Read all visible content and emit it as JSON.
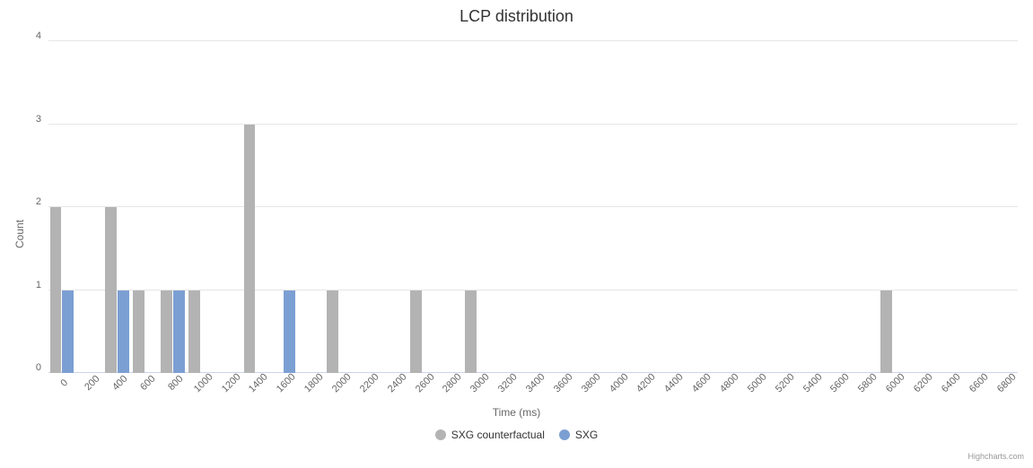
{
  "chart": {
    "type": "bar",
    "title": "LCP distribution",
    "title_fontsize": 18,
    "xlabel": "Time (ms)",
    "ylabel": "Count",
    "label_fontsize": 12,
    "tick_fontsize": 11,
    "background_color": "#ffffff",
    "grid_color": "#e6e6e6",
    "axis_color": "#ccd6eb",
    "text_color": "#333333",
    "tick_text_color": "#666666",
    "ylim": [
      0,
      4
    ],
    "ytick_step": 1,
    "categories": [
      "0",
      "200",
      "400",
      "600",
      "800",
      "1000",
      "1200",
      "1400",
      "1600",
      "1800",
      "2000",
      "2200",
      "2400",
      "2600",
      "2800",
      "3000",
      "3200",
      "3400",
      "3600",
      "3800",
      "4000",
      "4200",
      "4400",
      "4600",
      "4800",
      "5000",
      "5200",
      "5400",
      "5600",
      "5800",
      "6000",
      "6200",
      "6400",
      "6600",
      "6800"
    ],
    "xtick_rotation": -45,
    "group_padding": 0.05,
    "series": [
      {
        "name": "SXG counterfactual",
        "color": "#b3b3b3",
        "data": [
          2,
          0,
          2,
          1,
          1,
          1,
          0,
          3,
          0,
          0,
          1,
          0,
          0,
          1,
          0,
          1,
          0,
          0,
          0,
          0,
          0,
          0,
          0,
          0,
          0,
          0,
          0,
          0,
          0,
          0,
          1,
          0,
          0,
          0,
          0
        ]
      },
      {
        "name": "SXG",
        "color": "#7c9fd3",
        "data": [
          1,
          0,
          1,
          0,
          1,
          0,
          0,
          0,
          1,
          0,
          0,
          0,
          0,
          0,
          0,
          0,
          0,
          0,
          0,
          0,
          0,
          0,
          0,
          0,
          0,
          0,
          0,
          0,
          0,
          0,
          0,
          0,
          0,
          0,
          0
        ]
      }
    ],
    "legend_position": "bottom",
    "credits": "Highcharts.com"
  }
}
